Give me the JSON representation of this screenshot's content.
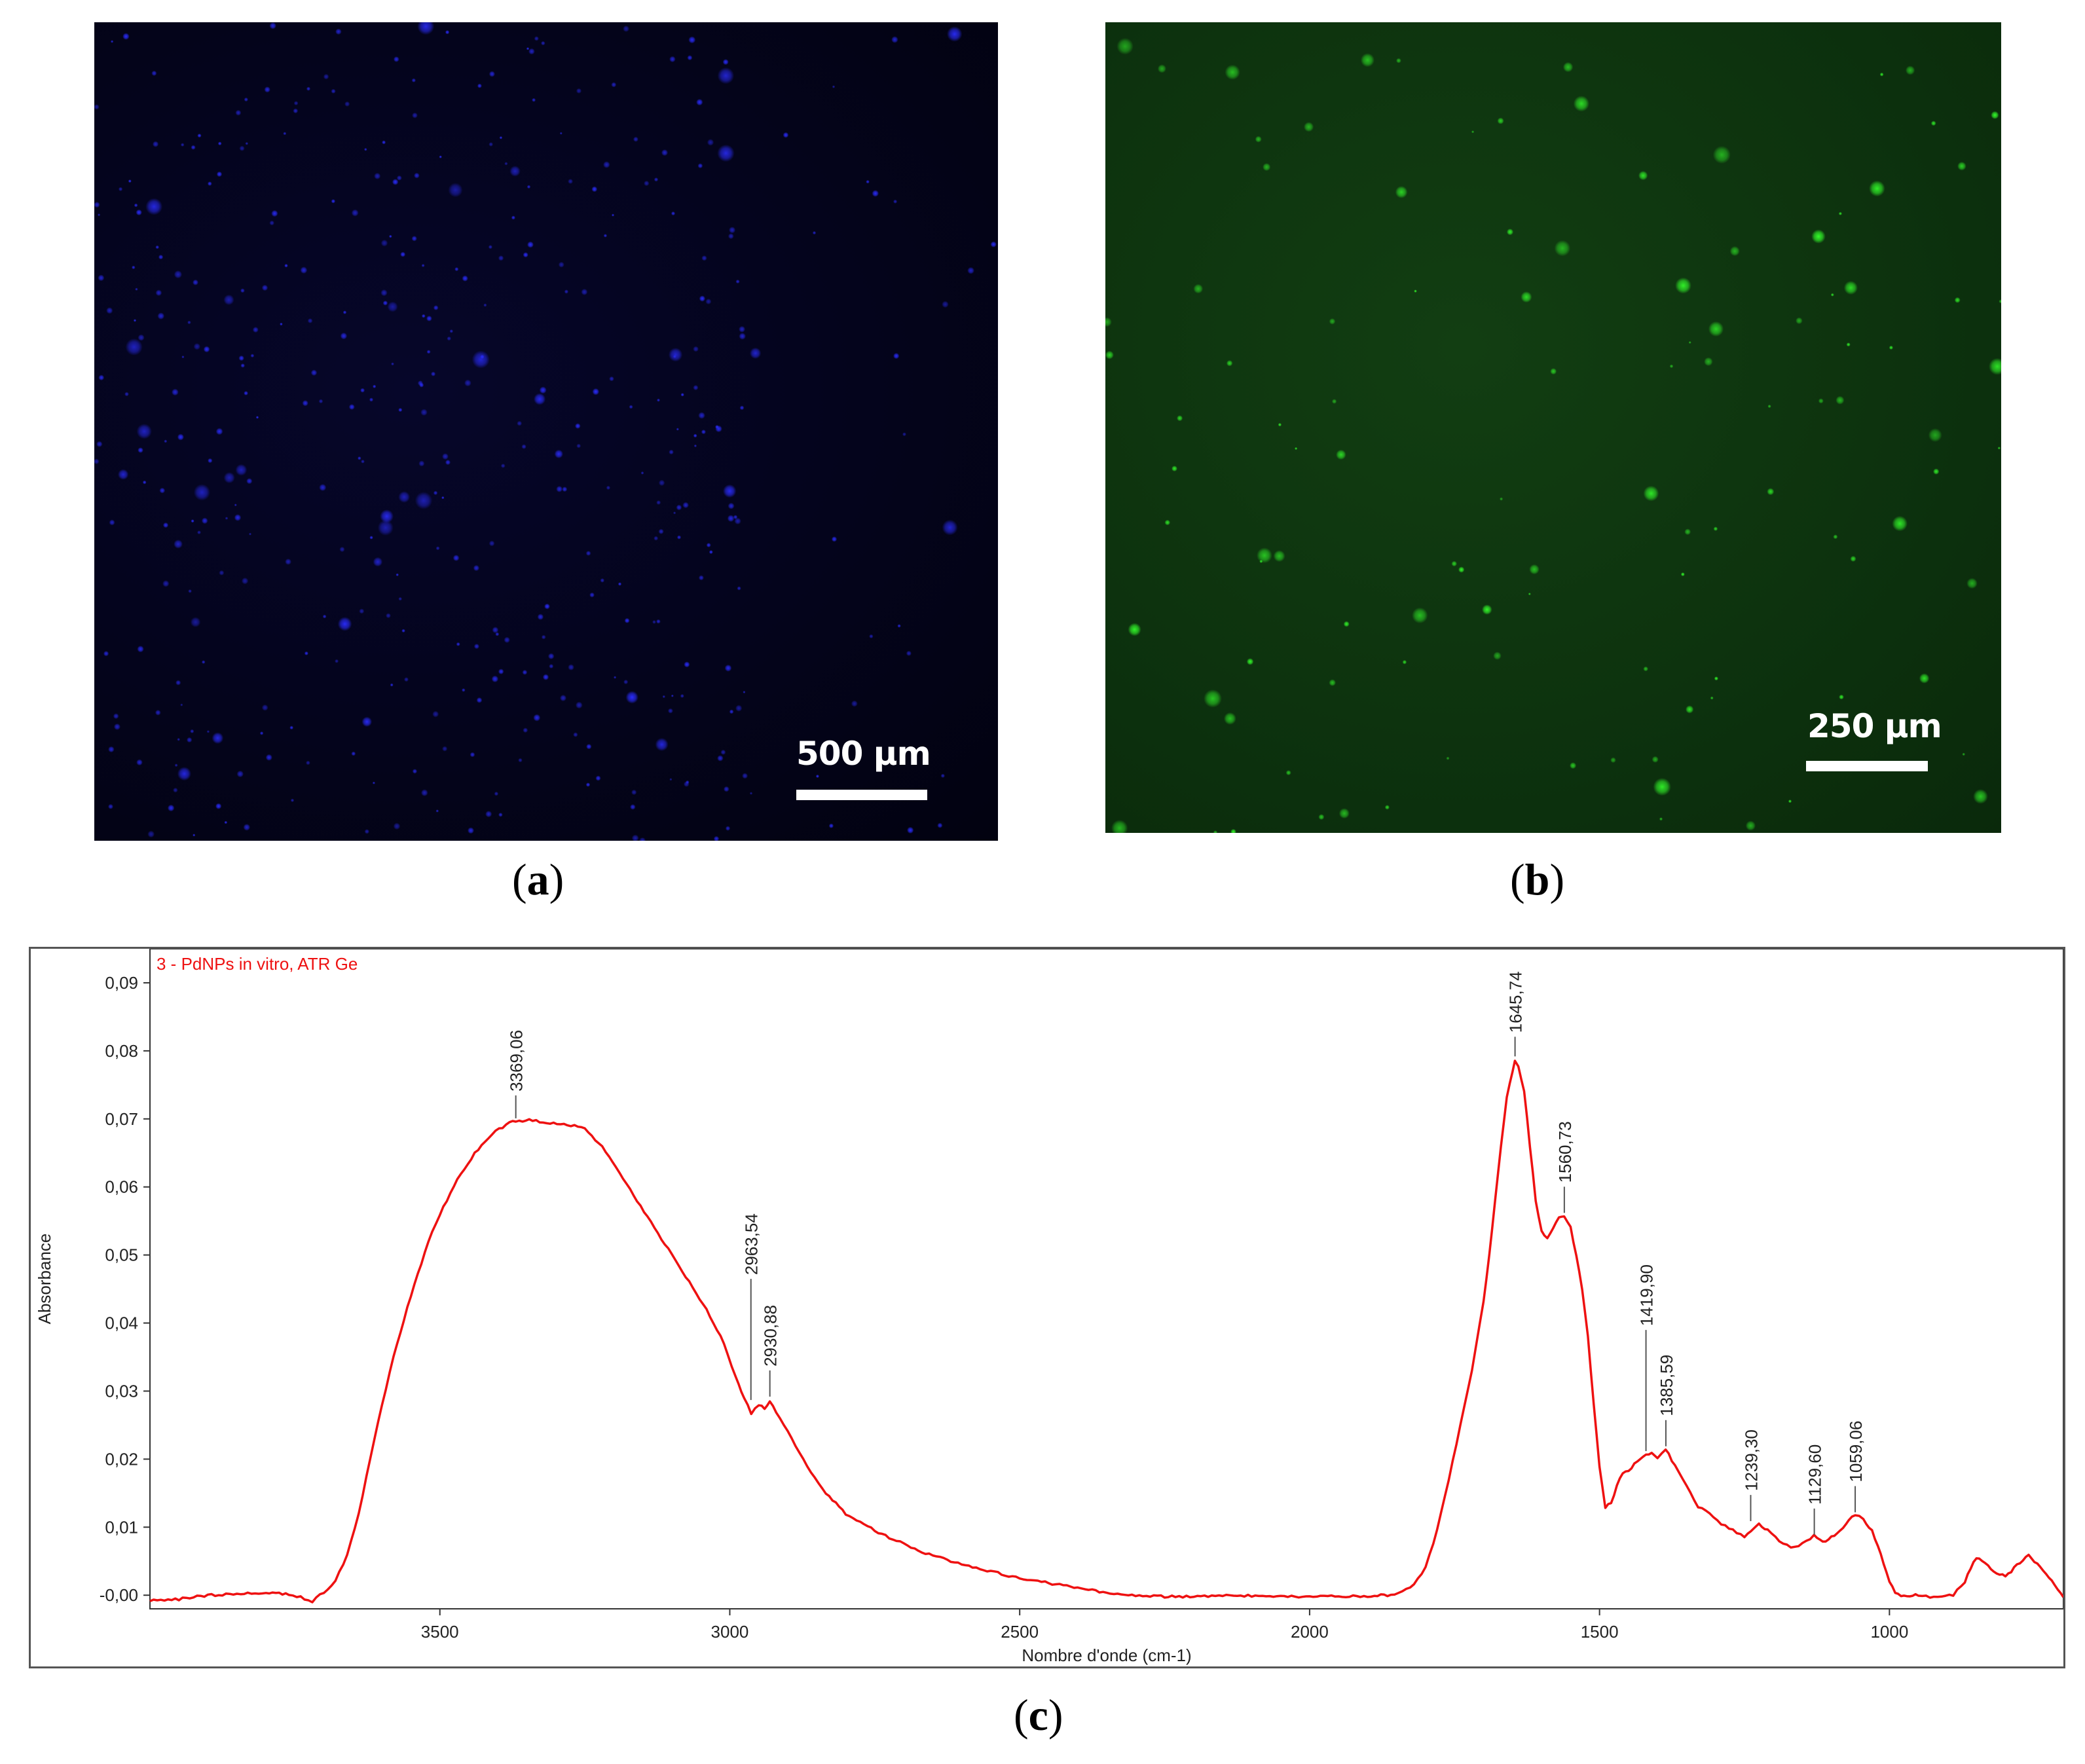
{
  "panels": {
    "a": {
      "label": "a",
      "scale_text": "500 µm",
      "dot_color": "#2a2cff"
    },
    "b": {
      "label": "b",
      "scale_text": "250 µm",
      "dot_color": "#33ff2a"
    },
    "c": {
      "label": "c"
    }
  },
  "chart_data": {
    "type": "line",
    "title": "3 - PdNPs in vitro, ATR Ge",
    "xlabel": "Nombre d'onde (cm-1)",
    "ylabel": "Absorbance",
    "xlim": [
      4000,
      700
    ],
    "ylim": [
      -0.002,
      0.095
    ],
    "x_reversed": true,
    "x_ticks": [
      3500,
      3000,
      2500,
      2000,
      1500,
      1000
    ],
    "y_ticks": [
      -0.0,
      0.01,
      0.02,
      0.03,
      0.04,
      0.05,
      0.06,
      0.07,
      0.08,
      0.09
    ],
    "y_tick_labels": [
      "-0,00",
      "0,01",
      "0,02",
      "0,03",
      "0,04",
      "0,05",
      "0,06",
      "0,07",
      "0,08",
      "0,09"
    ],
    "grid": false,
    "line_color": "#ee1111",
    "series": [
      {
        "x": [
          4000,
          3950,
          3900,
          3850,
          3800,
          3760,
          3740,
          3720,
          3700,
          3680,
          3660,
          3640,
          3620,
          3600,
          3580,
          3550,
          3520,
          3500,
          3470,
          3440,
          3410,
          3380,
          3369,
          3340,
          3310,
          3280,
          3250,
          3220,
          3190,
          3160,
          3130,
          3100,
          3070,
          3040,
          3010,
          2990,
          2975,
          2963,
          2950,
          2940,
          2931,
          2920,
          2900,
          2880,
          2860,
          2840,
          2800,
          2750,
          2700,
          2650,
          2600,
          2550,
          2500,
          2450,
          2400,
          2350,
          2300,
          2250,
          2200,
          2150,
          2100,
          2050,
          2000,
          1950,
          1900,
          1860,
          1840,
          1820,
          1800,
          1780,
          1760,
          1740,
          1720,
          1700,
          1690,
          1680,
          1670,
          1660,
          1650,
          1646,
          1640,
          1630,
          1620,
          1610,
          1600,
          1590,
          1580,
          1570,
          1561,
          1550,
          1540,
          1530,
          1520,
          1510,
          1500,
          1490,
          1480,
          1470,
          1460,
          1450,
          1440,
          1430,
          1420,
          1410,
          1400,
          1386,
          1370,
          1350,
          1330,
          1310,
          1290,
          1270,
          1250,
          1239,
          1225,
          1210,
          1190,
          1170,
          1150,
          1130,
          1115,
          1100,
          1085,
          1070,
          1059,
          1045,
          1030,
          1015,
          1000,
          990,
          980,
          970,
          960,
          950,
          930,
          910,
          890,
          870,
          860,
          850,
          840,
          830,
          820,
          810,
          800,
          790,
          780,
          770,
          760,
          750,
          740,
          730,
          720,
          710,
          700
        ],
        "y": [
          -0.0008,
          -0.0006,
          0.0,
          0.0002,
          0.0003,
          0.0002,
          -0.0003,
          -0.001,
          0.0005,
          0.002,
          0.006,
          0.012,
          0.02,
          0.028,
          0.035,
          0.044,
          0.052,
          0.056,
          0.061,
          0.065,
          0.0678,
          0.0694,
          0.0697,
          0.0698,
          0.0694,
          0.0692,
          0.0685,
          0.066,
          0.062,
          0.058,
          0.054,
          0.05,
          0.046,
          0.042,
          0.037,
          0.032,
          0.029,
          0.0268,
          0.028,
          0.0274,
          0.0286,
          0.027,
          0.024,
          0.021,
          0.018,
          0.0155,
          0.012,
          0.0095,
          0.0075,
          0.0058,
          0.0045,
          0.0035,
          0.0025,
          0.0018,
          0.001,
          0.0004,
          0.0,
          -0.0002,
          -0.0002,
          -0.0001,
          -0.0001,
          -0.0002,
          -0.0002,
          -0.0002,
          -0.0001,
          0.0,
          0.0005,
          0.0015,
          0.004,
          0.0095,
          0.017,
          0.025,
          0.033,
          0.043,
          0.05,
          0.058,
          0.066,
          0.073,
          0.077,
          0.0785,
          0.0778,
          0.074,
          0.066,
          0.058,
          0.0535,
          0.0525,
          0.054,
          0.0556,
          0.0557,
          0.054,
          0.05,
          0.045,
          0.038,
          0.028,
          0.019,
          0.013,
          0.0135,
          0.016,
          0.018,
          0.0182,
          0.0192,
          0.02,
          0.0205,
          0.0208,
          0.0202,
          0.0215,
          0.019,
          0.016,
          0.013,
          0.012,
          0.0105,
          0.0095,
          0.0085,
          0.0093,
          0.0105,
          0.0095,
          0.008,
          0.007,
          0.0075,
          0.0088,
          0.0078,
          0.0085,
          0.0095,
          0.011,
          0.0118,
          0.0112,
          0.0095,
          0.006,
          0.002,
          0.0005,
          0.0,
          -0.0003,
          0.0,
          0.0,
          -0.0003,
          -0.0003,
          0.0,
          0.002,
          0.004,
          0.0055,
          0.005,
          0.0045,
          0.0035,
          0.003,
          0.0028,
          0.0035,
          0.0045,
          0.0052,
          0.0058,
          0.005,
          0.0042,
          0.003,
          0.002,
          0.0008,
          -0.0003
        ]
      }
    ],
    "peaks": [
      {
        "x": 3369.06,
        "y": 0.0697,
        "label": "3369,06",
        "tick_len": 35
      },
      {
        "x": 2963.54,
        "y": 0.0283,
        "label": "2963,54",
        "tick_len": 185
      },
      {
        "x": 2930.88,
        "y": 0.0288,
        "label": "2930,88",
        "tick_len": 40
      },
      {
        "x": 1645.74,
        "y": 0.0788,
        "label": "1645,74",
        "tick_len": 30
      },
      {
        "x": 1560.73,
        "y": 0.0558,
        "label": "1560,73",
        "tick_len": 40
      },
      {
        "x": 1419.9,
        "y": 0.0208,
        "label": "1419,90",
        "tick_len": 185
      },
      {
        "x": 1385.59,
        "y": 0.0215,
        "label": "1385,59",
        "tick_len": 40
      },
      {
        "x": 1239.3,
        "y": 0.0105,
        "label": "1239,30",
        "tick_len": 40
      },
      {
        "x": 1129.6,
        "y": 0.0085,
        "label": "1129,60",
        "tick_len": 40
      },
      {
        "x": 1059.06,
        "y": 0.0118,
        "label": "1059,06",
        "tick_len": 40
      }
    ]
  }
}
